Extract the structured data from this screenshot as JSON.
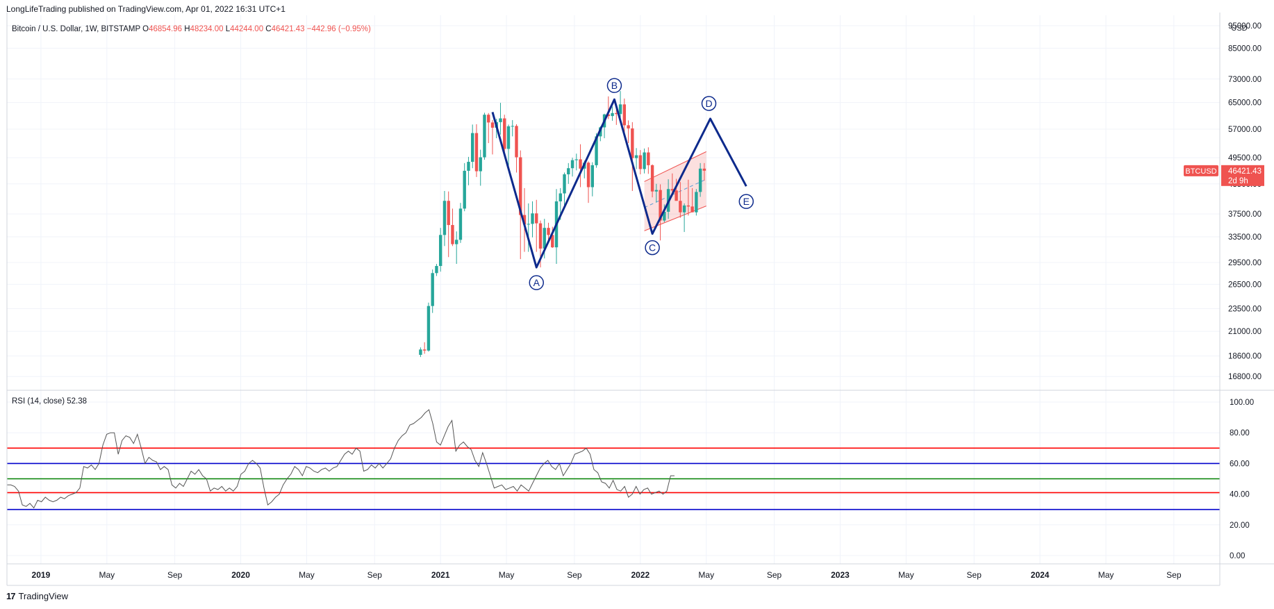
{
  "published": "LongLifeTrading published on TradingView.com, Apr 01, 2022 16:31 UTC+1",
  "legend": {
    "symbol": "Bitcoin / U.S. Dollar, 1W, BITSTAMP",
    "open_label": "O",
    "open": "46854.96",
    "high_label": "H",
    "high": "48234.00",
    "low_label": "L",
    "low": "44244.00",
    "close_label": "C",
    "close": "46421.43",
    "change": "−442.96 (−0.95%)"
  },
  "rsi_legend": {
    "label": "RSI (14, close)",
    "value": "52.38"
  },
  "footer": {
    "brand": "TradingView",
    "mark": "17"
  },
  "colors": {
    "up": "#26a69a",
    "down": "#ef5350",
    "pattern": "#0d2a8c",
    "rsi_line": "#555555",
    "red_level": "#ff0000",
    "blue_level": "#0000cc",
    "green_level": "#008000",
    "grid": "#f0f3fa",
    "label_bg": "#ef5350"
  },
  "chart_data": [
    {
      "type": "candlestick",
      "title": "Bitcoin / U.S. Dollar, 1W, BITSTAMP",
      "scale": "log",
      "currency": "USD",
      "y_ticks": [
        "95000.00",
        "85000.00",
        "73000.00",
        "65000.00",
        "57000.00",
        "49500.00",
        "43500.00",
        "37500.00",
        "33500.00",
        "29500.00",
        "26500.00",
        "23500.00",
        "21000.00",
        "18600.00",
        "16800.00"
      ],
      "x_ticks": [
        "2019",
        "May",
        "Sep",
        "2020",
        "May",
        "Sep",
        "2021",
        "May",
        "Sep",
        "2022",
        "May",
        "Sep",
        "2023",
        "May",
        "Sep",
        "2024",
        "May",
        "Sep"
      ],
      "last_price_label": {
        "symbol": "BTCUSD",
        "price": "46421.43",
        "countdown": "2d 9h"
      },
      "candles_weekly": [
        [
          2020.9,
          18700,
          19400,
          18500,
          19200
        ],
        [
          2020.92,
          19200,
          19900,
          18800,
          19100
        ],
        [
          2020.94,
          19100,
          24200,
          19000,
          23800
        ],
        [
          2020.96,
          23800,
          28500,
          23000,
          28000
        ],
        [
          2020.98,
          28000,
          29300,
          27600,
          29000
        ],
        [
          2021.0,
          29000,
          35000,
          28200,
          33800
        ],
        [
          2021.02,
          33800,
          42000,
          32000,
          40000
        ],
        [
          2021.04,
          40000,
          41900,
          30300,
          35500
        ],
        [
          2021.06,
          35500,
          38500,
          32000,
          32300
        ],
        [
          2021.08,
          32300,
          34400,
          29300,
          33000
        ],
        [
          2021.1,
          33000,
          39600,
          32500,
          38500
        ],
        [
          2021.12,
          38500,
          48200,
          38000,
          46400
        ],
        [
          2021.14,
          46400,
          49700,
          43200,
          48500
        ],
        [
          2021.16,
          48500,
          58300,
          47000,
          55900
        ],
        [
          2021.18,
          55900,
          58400,
          45000,
          46300
        ],
        [
          2021.2,
          46300,
          51500,
          43100,
          49600
        ],
        [
          2021.22,
          49600,
          61800,
          49000,
          61200
        ],
        [
          2021.24,
          61200,
          61700,
          53200,
          58900
        ],
        [
          2021.26,
          58900,
          59600,
          50300,
          57400
        ],
        [
          2021.28,
          57400,
          60000,
          54500,
          59000
        ],
        [
          2021.3,
          59000,
          64900,
          55500,
          60100
        ],
        [
          2021.32,
          60100,
          61200,
          50300,
          51700
        ],
        [
          2021.34,
          51700,
          58300,
          47000,
          57800
        ],
        [
          2021.36,
          57800,
          59600,
          55000,
          57900
        ],
        [
          2021.38,
          57900,
          58400,
          46000,
          49600
        ],
        [
          2021.4,
          49600,
          51300,
          30000,
          37300
        ],
        [
          2021.42,
          37300,
          42600,
          31100,
          35600
        ],
        [
          2021.44,
          35600,
          39500,
          31100,
          35700
        ],
        [
          2021.46,
          35700,
          39900,
          33400,
          37600
        ],
        [
          2021.48,
          37600,
          40200,
          31100,
          35800
        ],
        [
          2021.5,
          35800,
          36300,
          28800,
          31600
        ],
        [
          2021.52,
          31600,
          36600,
          30100,
          35000
        ],
        [
          2021.54,
          35000,
          35900,
          32700,
          33800
        ],
        [
          2021.56,
          33800,
          35200,
          31700,
          31800
        ],
        [
          2021.58,
          31800,
          42400,
          29300,
          39900
        ],
        [
          2021.6,
          39900,
          42600,
          36400,
          41500
        ],
        [
          2021.62,
          41500,
          46000,
          38700,
          45600
        ],
        [
          2021.64,
          45600,
          48200,
          43500,
          47000
        ],
        [
          2021.66,
          47000,
          49500,
          45100,
          48900
        ],
        [
          2021.68,
          48900,
          50500,
          46500,
          49100
        ],
        [
          2021.7,
          49100,
          52900,
          42800,
          46900
        ],
        [
          2021.72,
          46900,
          48800,
          44700,
          48300
        ],
        [
          2021.74,
          48300,
          48600,
          39600,
          42800
        ],
        [
          2021.76,
          42800,
          48400,
          40900,
          47700
        ],
        [
          2021.78,
          47700,
          55900,
          47100,
          55000
        ],
        [
          2021.8,
          55000,
          57800,
          53700,
          57500
        ],
        [
          2021.82,
          57500,
          61500,
          54500,
          61300
        ],
        [
          2021.84,
          61300,
          67000,
          59900,
          60800
        ],
        [
          2021.86,
          60800,
          63700,
          59400,
          61700
        ],
        [
          2021.88,
          61700,
          64300,
          58200,
          61400
        ],
        [
          2021.9,
          61400,
          68800,
          60100,
          64400
        ],
        [
          2021.92,
          64400,
          66300,
          55800,
          58100
        ],
        [
          2021.94,
          58100,
          59500,
          53200,
          57200
        ],
        [
          2021.96,
          57200,
          59000,
          42000,
          49400
        ],
        [
          2021.98,
          49400,
          51900,
          46800,
          50100
        ],
        [
          2022.0,
          50100,
          51400,
          45600,
          46800
        ],
        [
          2022.02,
          46800,
          51800,
          45800,
          50800
        ],
        [
          2022.04,
          50800,
          52100,
          45700,
          47700
        ],
        [
          2022.06,
          47700,
          47900,
          40700,
          41900
        ],
        [
          2022.08,
          41900,
          43500,
          39700,
          42200
        ],
        [
          2022.1,
          42200,
          43400,
          32900,
          36300
        ],
        [
          2022.12,
          36300,
          39300,
          36000,
          37900
        ],
        [
          2022.14,
          37900,
          44500,
          36600,
          42400
        ],
        [
          2022.16,
          42400,
          45800,
          41700,
          42100
        ],
        [
          2022.18,
          42100,
          44600,
          40100,
          40000
        ],
        [
          2022.2,
          40000,
          43900,
          36800,
          37800
        ],
        [
          2022.22,
          37800,
          39500,
          34300,
          39100
        ],
        [
          2022.24,
          39100,
          44400,
          37200,
          38900
        ],
        [
          2022.26,
          38900,
          42600,
          37800,
          37800
        ],
        [
          2022.28,
          37800,
          42400,
          37200,
          41800
        ],
        [
          2022.3,
          41800,
          48200,
          40800,
          46900
        ],
        [
          2022.32,
          46900,
          48200,
          44200,
          46421.43
        ]
      ],
      "pattern_points": [
        {
          "label": "",
          "date": 2021.26,
          "price": 62000
        },
        {
          "label": "A",
          "date": 2021.48,
          "price": 28800
        },
        {
          "label": "B",
          "date": 2021.87,
          "price": 66000
        },
        {
          "label": "C",
          "date": 2022.06,
          "price": 34000
        },
        {
          "label": "D",
          "date": 2022.35,
          "price": 60000
        },
        {
          "label": "E",
          "date": 2022.53,
          "price": 43000
        }
      ],
      "channel": {
        "upper": [
          [
            2022.02,
            44000
          ],
          [
            2022.33,
            51000
          ]
        ],
        "lower": [
          [
            2022.02,
            34500
          ],
          [
            2022.33,
            39000
          ]
        ],
        "mid": [
          [
            2022.02,
            38700
          ],
          [
            2022.33,
            44500
          ]
        ]
      }
    },
    {
      "type": "line",
      "title": "RSI (14, close)",
      "ylim": [
        0,
        100
      ],
      "y_ticks": [
        "100.00",
        "80.00",
        "60.00",
        "40.00",
        "20.00",
        "0.00"
      ],
      "levels": [
        {
          "value": 70,
          "color": "red"
        },
        {
          "value": 60,
          "color": "blue"
        },
        {
          "value": 50,
          "color": "green"
        },
        {
          "value": 41,
          "color": "red"
        },
        {
          "value": 30,
          "color": "blue"
        }
      ],
      "x_start": 2018.83,
      "x_step": 0.0192,
      "values": [
        46,
        46,
        45,
        42,
        33,
        32,
        34,
        31,
        36,
        35,
        38,
        36,
        35,
        36,
        38,
        37,
        39,
        40,
        41,
        44,
        58,
        57,
        59,
        56,
        60,
        72,
        79,
        80,
        80,
        66,
        75,
        78,
        77,
        73,
        79,
        70,
        60,
        64,
        62,
        61,
        56,
        58,
        56,
        46,
        44,
        47,
        45,
        50,
        55,
        53,
        56,
        52,
        50,
        42,
        44,
        43,
        45,
        42,
        44,
        42,
        45,
        53,
        55,
        60,
        62,
        60,
        57,
        44,
        33,
        35,
        38,
        40,
        46,
        50,
        53,
        58,
        56,
        52,
        58,
        57,
        55,
        54,
        56,
        57,
        55,
        57,
        58,
        62,
        66,
        68,
        66,
        70,
        68,
        55,
        56,
        59,
        57,
        60,
        57,
        60,
        63,
        70,
        75,
        78,
        80,
        85,
        86,
        88,
        90,
        93,
        95,
        86,
        74,
        72,
        78,
        84,
        88,
        68,
        72,
        74,
        71,
        69,
        62,
        58,
        67,
        60,
        52,
        44,
        45,
        46,
        43,
        44,
        45,
        42,
        46,
        44,
        42,
        47,
        52,
        57,
        60,
        62,
        58,
        56,
        60,
        52,
        56,
        60,
        66,
        67,
        68,
        70,
        66,
        56,
        54,
        48,
        47,
        44,
        49,
        43,
        42,
        45,
        38,
        40,
        45,
        40,
        43,
        44,
        40,
        41,
        42,
        40,
        42,
        52,
        52
      ]
    }
  ]
}
